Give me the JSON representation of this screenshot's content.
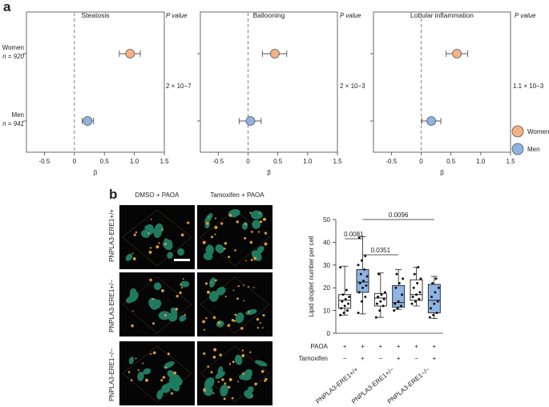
{
  "panel_a": {
    "letter": "a",
    "pvalue_header": "P value",
    "groups": [
      {
        "name": "Women",
        "n": "n = 920",
        "color": "#f5b283"
      },
      {
        "name": "Men",
        "n": "n = 941",
        "color": "#8fb4e3"
      }
    ],
    "x_ticks": [
      "-0.5",
      "0",
      "0.5",
      "1.0",
      "1.5"
    ],
    "x_label": "β",
    "legend": [
      {
        "name": "Women",
        "color": "#f5b283"
      },
      {
        "name": "Men",
        "color": "#8fb4e3"
      }
    ]
  },
  "panel_b": {
    "letter": "b",
    "col_headers": [
      "DMSO + PAOA",
      "Tamoxifen + PAOA"
    ],
    "row_labels": [
      "PNPLA3-ERE1+/+",
      "PNPLA3-ERE1+/−",
      "PNPLA3-ERE1−/−"
    ]
  },
  "chart_data": [
    {
      "type": "scatter",
      "title": "Steatosis",
      "xlim": [
        -0.8,
        1.5
      ],
      "xlabel": "β",
      "pvalue": "2 × 10−7",
      "series": [
        {
          "name": "Women",
          "x": [
            0.93
          ],
          "ci": [
            0.75,
            1.1
          ]
        },
        {
          "name": "Men",
          "x": [
            0.22
          ],
          "ci": [
            0.13,
            0.32
          ]
        }
      ]
    },
    {
      "type": "scatter",
      "title": "Ballooning",
      "xlim": [
        -0.8,
        1.5
      ],
      "xlabel": "β",
      "pvalue": "2 × 10−3",
      "series": [
        {
          "name": "Women",
          "x": [
            0.45
          ],
          "ci": [
            0.24,
            0.65
          ]
        },
        {
          "name": "Men",
          "x": [
            0.04
          ],
          "ci": [
            -0.15,
            0.22
          ]
        }
      ]
    },
    {
      "type": "scatter",
      "title": "Lobular inflammation",
      "xlim": [
        -0.8,
        1.5
      ],
      "xlabel": "β",
      "pvalue": "1.1 × 10−3",
      "series": [
        {
          "name": "Women",
          "x": [
            0.6
          ],
          "ci": [
            0.42,
            0.78
          ]
        },
        {
          "name": "Men",
          "x": [
            0.17
          ],
          "ci": [
            0.01,
            0.33
          ]
        }
      ]
    },
    {
      "type": "bar",
      "ylabel": "Lipid droplet number per cell",
      "ylim": [
        0,
        50
      ],
      "y_ticks": [
        "0",
        "10",
        "20",
        "30",
        "40",
        "50"
      ],
      "row_labels": [
        "PAOA",
        "Tamoxifen"
      ],
      "paoa": [
        "+",
        "+",
        "+",
        "+",
        "+",
        "+"
      ],
      "tamoxifen": [
        "−",
        "+",
        "−",
        "+",
        "−",
        "+"
      ],
      "categories": [
        "PNPLA3-ERE1+/+",
        "PNPLA3-ERE1+/−",
        "PNPLA3-ERE1−/−"
      ],
      "comparisons": [
        {
          "from": 1,
          "to": 2,
          "label": "0.0081"
        },
        {
          "from": 2,
          "to": 4,
          "label": "0.0351"
        },
        {
          "from": 2,
          "to": 6,
          "label": "0.0096"
        }
      ],
      "boxes": [
        {
          "filled": false,
          "min": 8,
          "q1": 11,
          "median": 14.5,
          "q3": 17,
          "max": 29.5,
          "points": [
            8,
            9,
            10,
            11,
            12,
            13,
            14,
            15,
            16,
            17,
            19,
            29
          ]
        },
        {
          "filled": true,
          "min": 8.5,
          "q1": 18,
          "median": 22.5,
          "q3": 28,
          "max": 42.5,
          "points": [
            9,
            14,
            16,
            18,
            20,
            21,
            22,
            23,
            25,
            26,
            28,
            30,
            32,
            34,
            42
          ]
        },
        {
          "filled": false,
          "min": 7,
          "q1": 12,
          "median": 15.5,
          "q3": 17.5,
          "max": 26.5,
          "points": [
            7,
            10,
            12,
            13,
            14,
            15,
            16,
            17,
            18,
            26
          ]
        },
        {
          "filled": true,
          "min": 10.5,
          "q1": 11.5,
          "median": 13.5,
          "q3": 21,
          "max": 28,
          "points": [
            10,
            11,
            12,
            13,
            14,
            17,
            20,
            22,
            24,
            26
          ]
        },
        {
          "filled": false,
          "min": 12,
          "q1": 14.5,
          "median": 17,
          "q3": 23.5,
          "max": 29,
          "points": [
            13,
            14,
            15,
            16,
            17,
            18,
            20,
            22,
            24,
            26,
            29
          ]
        },
        {
          "filled": true,
          "min": 6.5,
          "q1": 9,
          "median": 14.5,
          "q3": 21.5,
          "max": 25,
          "points": [
            7,
            8,
            9,
            11,
            13,
            14,
            16,
            18,
            20,
            22,
            24
          ]
        }
      ]
    }
  ]
}
